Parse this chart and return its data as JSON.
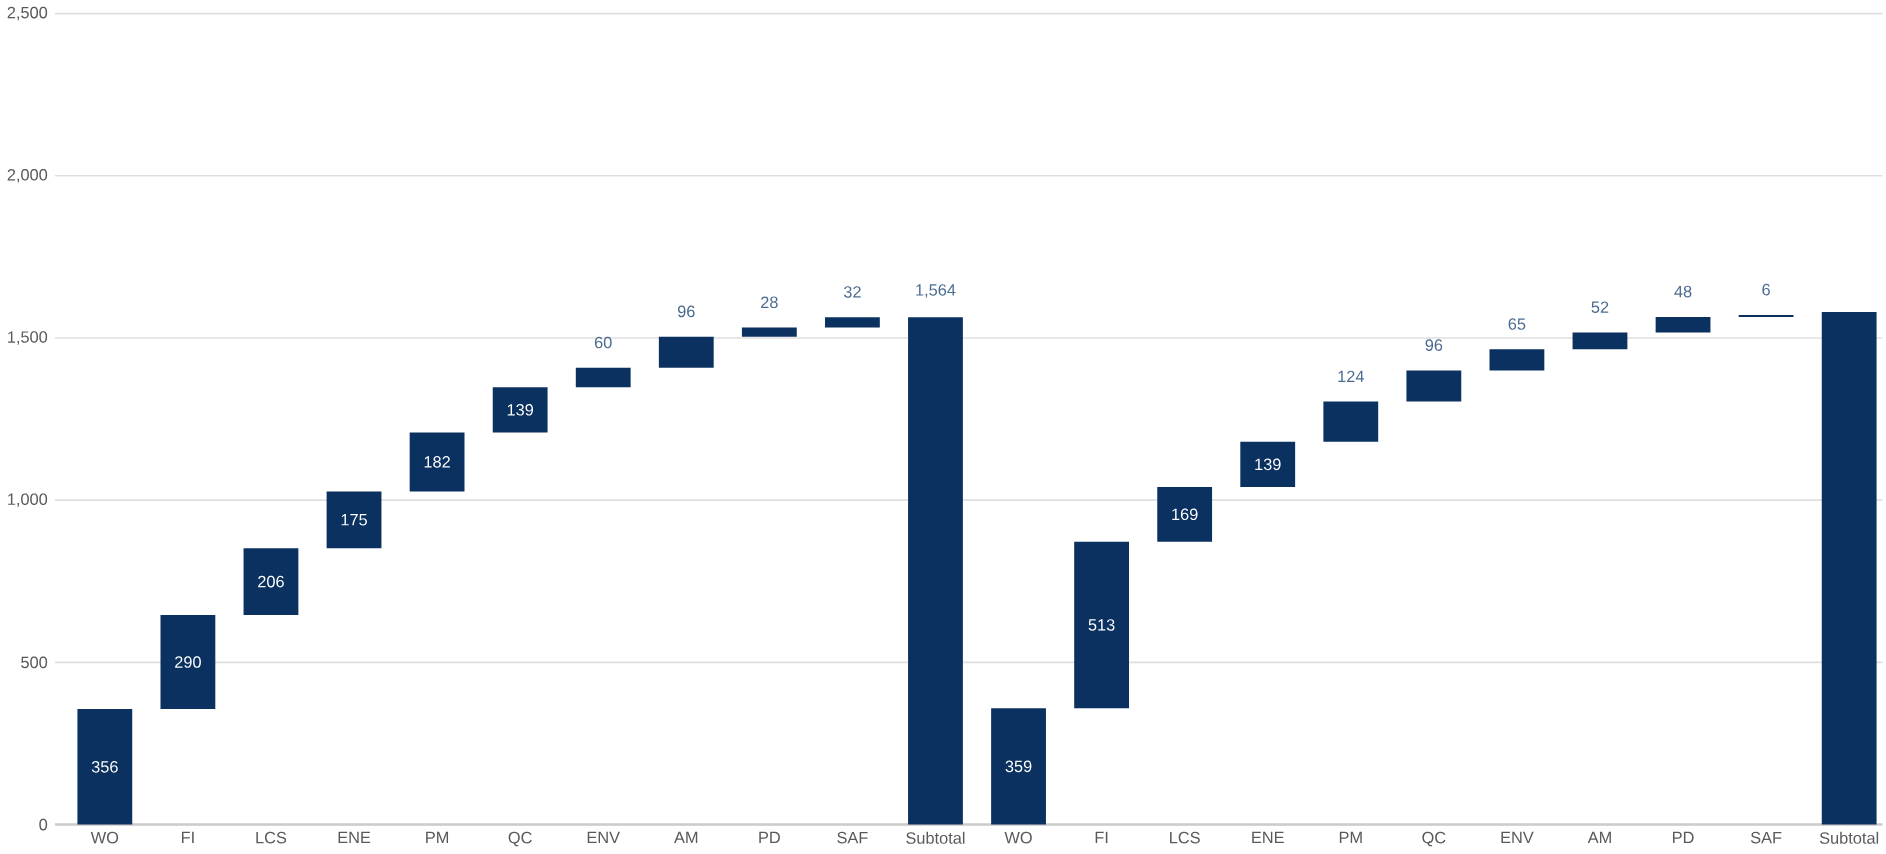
{
  "chart_data": {
    "type": "bar",
    "categories": [
      "WO",
      "FI",
      "LCS",
      "ENE",
      "PM",
      "QC",
      "ENV",
      "AM",
      "PD",
      "SAF",
      "Subtotal",
      "WO",
      "FI",
      "LCS",
      "ENE",
      "PM",
      "QC",
      "ENV",
      "AM",
      "PD",
      "SAF",
      "Subtotal"
    ],
    "values": [
      356,
      290,
      206,
      175,
      182,
      139,
      60,
      96,
      28,
      32,
      1564,
      359,
      513,
      169,
      139,
      124,
      96,
      65,
      52,
      48,
      6,
      1580
    ],
    "base": [
      0,
      356,
      646,
      852,
      1027,
      1209,
      1348,
      1408,
      1504,
      1532,
      0,
      0,
      359,
      872,
      1041,
      1180,
      1304,
      1400,
      1465,
      1517,
      1565,
      0
    ],
    "value_labels": [
      "356",
      "290",
      "206",
      "175",
      "182",
      "139",
      "60",
      "96",
      "28",
      "32",
      "1,564",
      "359",
      "513",
      "169",
      "139",
      "124",
      "96",
      "65",
      "52",
      "48",
      "6",
      null
    ],
    "color": "#0b3160",
    "ylim": [
      0,
      2500
    ],
    "yticks": [
      0,
      500,
      {
        "value": 1000,
        "label": "1,000"
      },
      {
        "value": 1500,
        "label": "1,500"
      },
      {
        "value": 2000,
        "label": "2,000"
      },
      {
        "value": 2500,
        "label": "2,500"
      }
    ],
    "grid": "y"
  }
}
